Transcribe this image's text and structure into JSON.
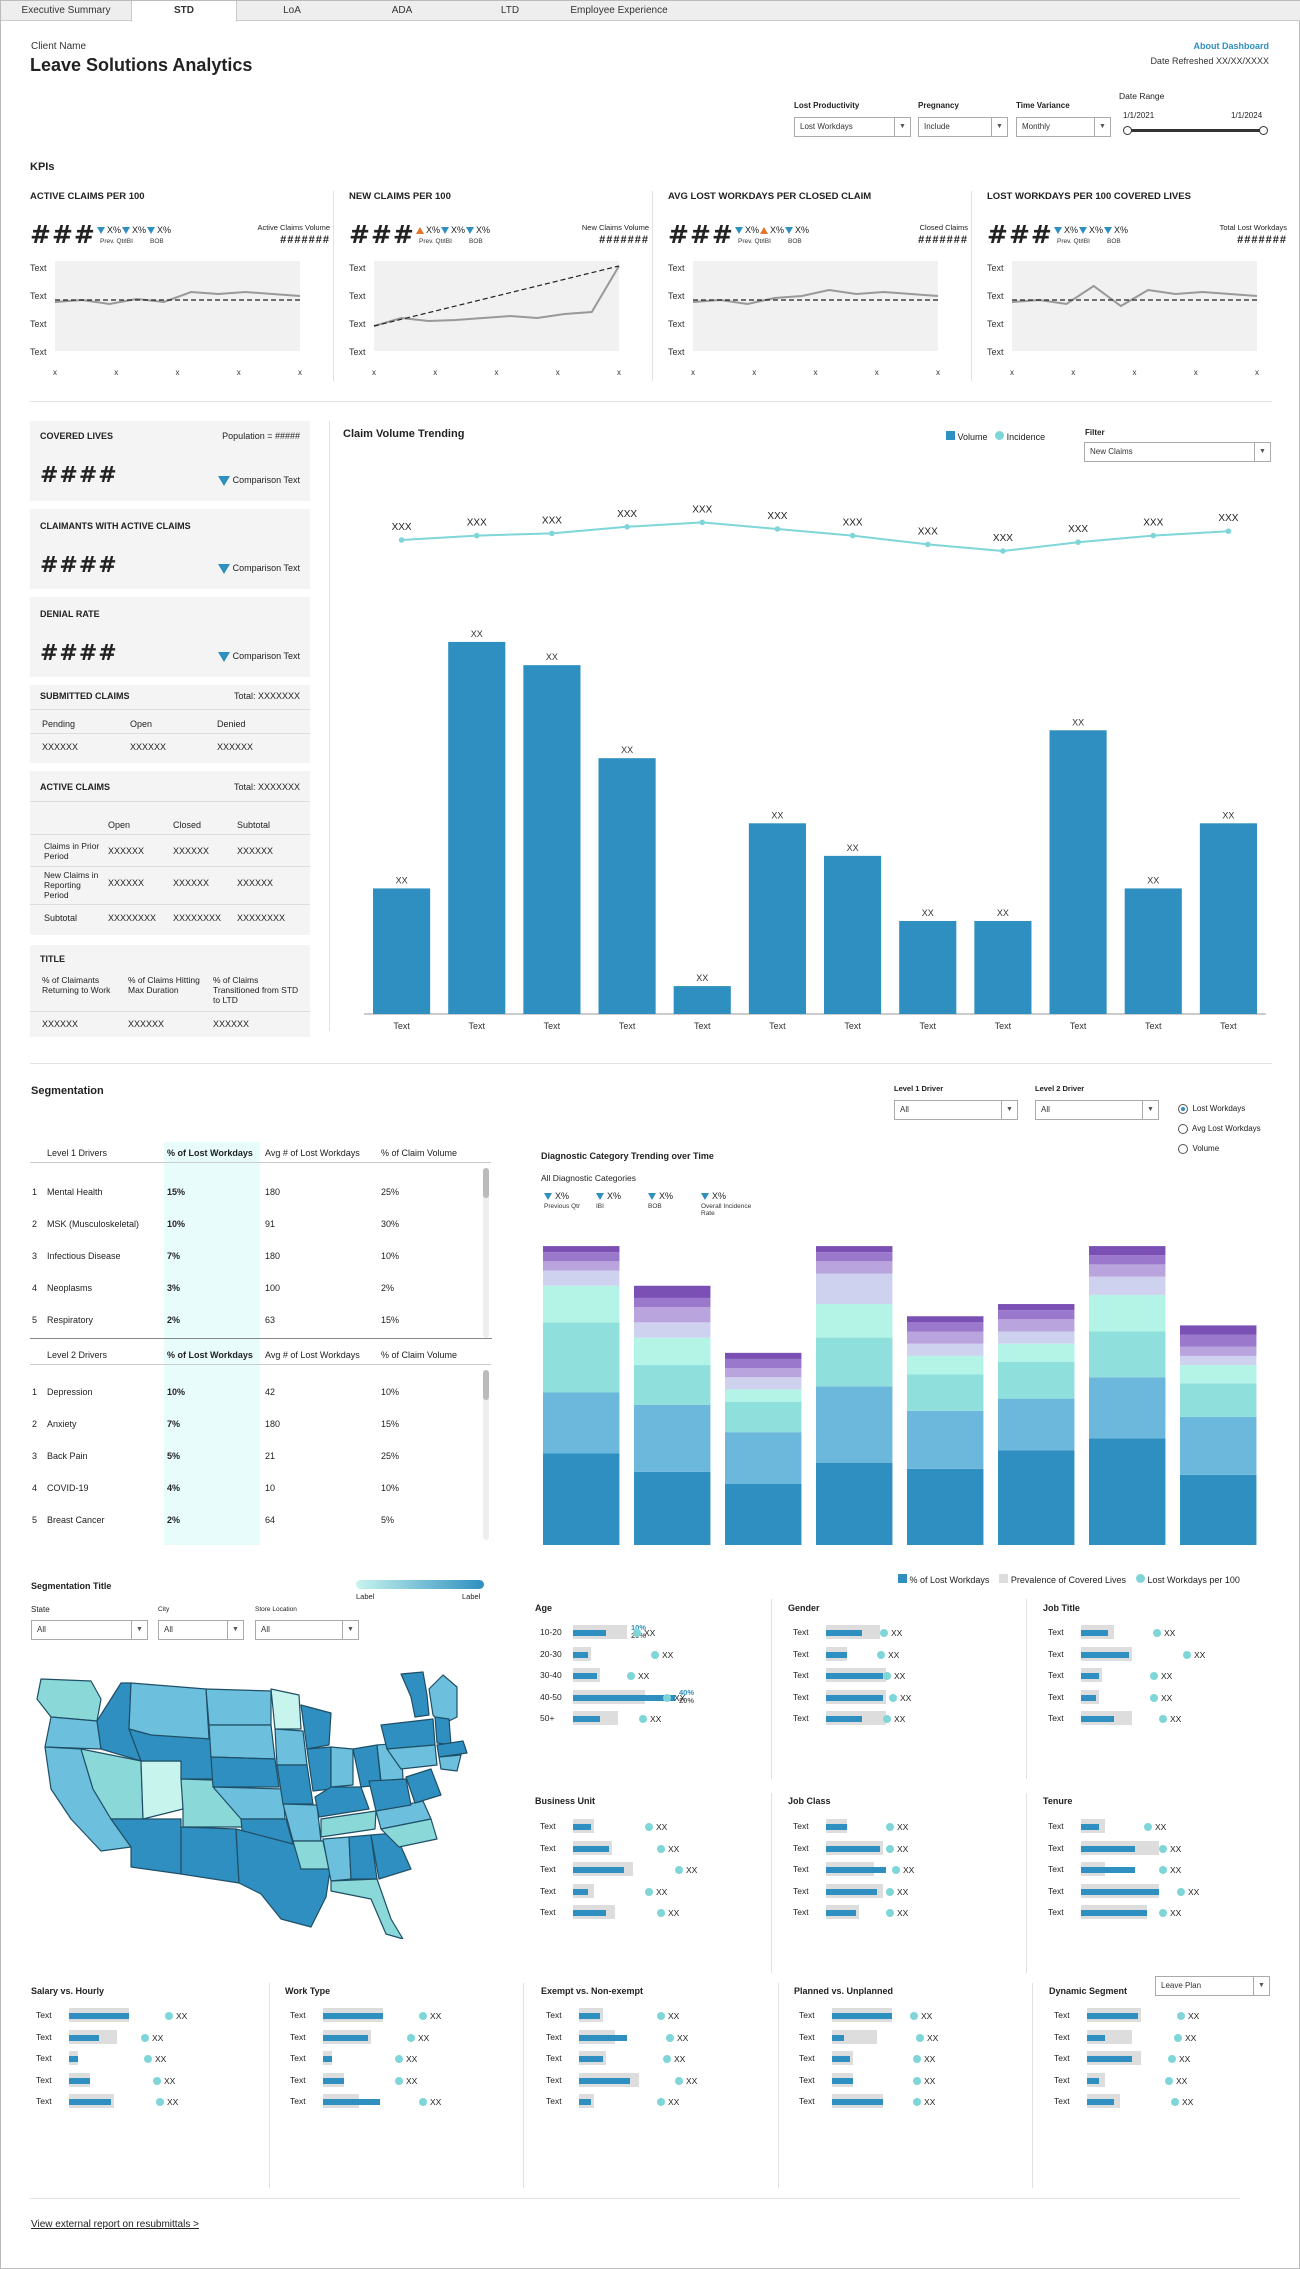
{
  "tabs": [
    "Executive Summary",
    "STD",
    "LoA",
    "ADA",
    "LTD",
    "Employee Experience"
  ],
  "active_tab": "STD",
  "header": {
    "client": "Client Name",
    "title": "Leave Solutions Analytics",
    "about": "About Dashboard",
    "refreshed": "Date Refreshed XX/XX/XXXX"
  },
  "filters": {
    "lost_label": "Lost Productivity",
    "lost_value": "Lost Workdays",
    "preg_label": "Pregnancy",
    "preg_value": "Include",
    "tv_label": "Time Variance",
    "tv_value": "Monthly",
    "dr_label": "Date Range",
    "dr_start": "1/1/2021",
    "dr_end": "1/1/2024"
  },
  "kpis_label": "KPIs",
  "kpis": [
    {
      "title": "ACTIVE CLAIMS PER 100",
      "value": "###",
      "deltas": [
        "X%",
        "X%",
        "X%"
      ],
      "sub": [
        "Prev. Qtr",
        "IBI",
        "BOB"
      ],
      "dirs": [
        "down",
        "down",
        "down"
      ],
      "vol_label": "Active Claims Volume",
      "vol_value": "#######",
      "yticks": [
        "Text",
        "Text",
        "Text",
        "Text"
      ],
      "xticks": [
        "x",
        "x",
        "x",
        "x",
        "x"
      ]
    },
    {
      "title": "NEW CLAIMS PER 100",
      "value": "###",
      "deltas": [
        "X%",
        "X%",
        "X%"
      ],
      "sub": [
        "Prev. Qtr",
        "IBI",
        "BOB"
      ],
      "dirs": [
        "up",
        "down",
        "down"
      ],
      "vol_label": "New Claims Volume",
      "vol_value": "#######",
      "yticks": [
        "Text",
        "Text",
        "Text",
        "Text"
      ],
      "xticks": [
        "x",
        "x",
        "x",
        "x",
        "x"
      ]
    },
    {
      "title": "AVG LOST WORKDAYS PER CLOSED CLAIM",
      "value": "###",
      "deltas": [
        "X%",
        "X%",
        "X%"
      ],
      "sub": [
        "Prev. Qtr",
        "IBI",
        "BOB"
      ],
      "dirs": [
        "down",
        "up",
        "down"
      ],
      "vol_label": "Closed Claims",
      "vol_value": "#######",
      "yticks": [
        "Text",
        "Text",
        "Text",
        "Text"
      ],
      "xticks": [
        "x",
        "x",
        "x",
        "x",
        "x"
      ]
    },
    {
      "title": "LOST WORKDAYS PER 100 COVERED LIVES",
      "value": "###",
      "deltas": [
        "X%",
        "X%",
        "X%"
      ],
      "sub": [
        "Prev. Qtr",
        "IBI",
        "BOB"
      ],
      "dirs": [
        "down",
        "down",
        "down"
      ],
      "vol_label": "Total Lost Workdays",
      "vol_value": "#######",
      "yticks": [
        "Text",
        "Text",
        "Text",
        "Text"
      ],
      "xticks": [
        "x",
        "x",
        "x",
        "x",
        "x"
      ]
    }
  ],
  "summary": {
    "covered": {
      "title": "COVERED LIVES",
      "pop": "Population = #####",
      "value": "####",
      "cmp": "Comparison Text"
    },
    "claimants": {
      "title": "CLAIMANTS WITH ACTIVE CLAIMS",
      "value": "####",
      "cmp": "Comparison Text"
    },
    "denial": {
      "title": "DENIAL RATE",
      "value": "####",
      "cmp": "Comparison Text"
    },
    "submitted": {
      "title": "SUBMITTED CLAIMS",
      "total": "Total: XXXXXXX",
      "cols": [
        "Pending",
        "Open",
        "Denied"
      ],
      "vals": [
        "XXXXXX",
        "XXXXXX",
        "XXXXXX"
      ]
    },
    "active": {
      "title": "ACTIVE CLAIMS",
      "total": "Total: XXXXXXX",
      "cols": [
        "Open",
        "Closed",
        "Subtotal"
      ],
      "rows": [
        {
          "label": "Claims in Prior Period",
          "vals": [
            "XXXXXX",
            "XXXXXX",
            "XXXXXX"
          ]
        },
        {
          "label": "New Claims in Reporting Period",
          "vals": [
            "XXXXXX",
            "XXXXXX",
            "XXXXXX"
          ]
        },
        {
          "label": "Subtotal",
          "vals": [
            "XXXXXXXX",
            "XXXXXXXX",
            "XXXXXXXX"
          ]
        }
      ]
    },
    "title_panel": {
      "title": "TITLE",
      "cols": [
        "% of Claimants Returning to Work",
        "% of Claims Hitting Max Duration",
        "% of Claims Transitioned from STD to LTD"
      ],
      "vals": [
        "XXXXXX",
        "XXXXXX",
        "XXXXXX"
      ]
    }
  },
  "claim_chart": {
    "title": "Claim Volume Trending",
    "legend": [
      "Volume",
      "Incidence"
    ],
    "filter_label": "Filter",
    "filter_value": "New Claims"
  },
  "chart_data": [
    {
      "type": "bar",
      "title": "Claim Volume Trending",
      "categories": [
        "Text",
        "Text",
        "Text",
        "Text",
        "Text",
        "Text",
        "Text",
        "Text",
        "Text",
        "Text",
        "Text",
        "Text"
      ],
      "series": [
        {
          "name": "Volume",
          "values": [
            27,
            80,
            75,
            55,
            6,
            41,
            34,
            20,
            20,
            61,
            27,
            41
          ],
          "labels": [
            "XX",
            "XX",
            "XX",
            "XX",
            "XX",
            "XX",
            "XX",
            "XX",
            "XX",
            "XX",
            "XX",
            "XX"
          ]
        },
        {
          "name": "Incidence",
          "values": [
            60,
            62,
            63,
            66,
            68,
            65,
            62,
            58,
            55,
            59,
            62,
            64
          ],
          "labels": [
            "XXX",
            "XXX",
            "XXX",
            "XXX",
            "XXX",
            "XXX",
            "XXX",
            "XXX",
            "XXX",
            "XXX",
            "XXX",
            "XXX"
          ]
        }
      ],
      "ylim": [
        0,
        100
      ]
    },
    {
      "type": "bar",
      "title": "Diagnostic Category Trending over Time",
      "stacked": true,
      "series": [
        {
          "values": [
            30,
            24,
            20,
            27,
            25,
            31,
            35,
            23
          ]
        },
        {
          "values": [
            20,
            22,
            17,
            25,
            19,
            17,
            20,
            19
          ]
        },
        {
          "values": [
            23,
            13,
            10,
            16,
            12,
            12,
            15,
            11
          ]
        },
        {
          "values": [
            12,
            9,
            4,
            11,
            6,
            6,
            12,
            6
          ]
        },
        {
          "values": [
            5,
            5,
            4,
            10,
            4,
            4,
            6,
            3
          ]
        },
        {
          "values": [
            3,
            5,
            3,
            4,
            4,
            4,
            4,
            3
          ]
        },
        {
          "values": [
            3,
            3,
            3,
            3,
            3,
            3,
            3,
            4
          ]
        },
        {
          "values": [
            2,
            4,
            2,
            2,
            2,
            2,
            3,
            3
          ]
        }
      ]
    }
  ],
  "segmentation": {
    "title": "Segmentation",
    "l1_label": "Level 1 Driver",
    "l1_value": "All",
    "l2_label": "Level 2 Driver",
    "l2_value": "All",
    "radios": [
      "Lost Workdays",
      "Avg Lost Workdays",
      "Volume"
    ],
    "level1": {
      "cols": [
        "Level 1 Drivers",
        "% of Lost Workdays",
        "Avg # of Lost Workdays",
        "% of Claim Volume"
      ],
      "rows": [
        [
          "1",
          "Mental Health",
          "15%",
          "180",
          "25%"
        ],
        [
          "2",
          "MSK (Musculoskeletal)",
          "10%",
          "91",
          "30%"
        ],
        [
          "3",
          "Infectious Disease",
          "7%",
          "180",
          "10%"
        ],
        [
          "4",
          "Neoplasms",
          "3%",
          "100",
          "2%"
        ],
        [
          "5",
          "Respiratory",
          "2%",
          "63",
          "15%"
        ]
      ]
    },
    "level2": {
      "cols": [
        "Level 2 Drivers",
        "% of Lost Workdays",
        "Avg # of Lost Workdays",
        "% of Claim Volume"
      ],
      "rows": [
        [
          "1",
          "Depression",
          "10%",
          "42",
          "10%"
        ],
        [
          "2",
          "Anxiety",
          "7%",
          "180",
          "15%"
        ],
        [
          "3",
          "Back Pain",
          "5%",
          "21",
          "25%"
        ],
        [
          "4",
          "COVID-19",
          "4%",
          "10",
          "10%"
        ],
        [
          "5",
          "Breast Cancer",
          "2%",
          "64",
          "5%"
        ]
      ]
    },
    "diag": {
      "title": "Diagnostic Category Trending over Time",
      "sub": "All Diagnostic Categories",
      "deltas": [
        "X%",
        "X%",
        "X%",
        "X%"
      ],
      "labels": [
        "Previous Qtr",
        "IBI",
        "BOB",
        "Overall Incidence Rate"
      ]
    }
  },
  "map": {
    "title": "Segmentation Title",
    "scale_low": "Label",
    "scale_high": "Label",
    "state_label": "State",
    "state_value": "All",
    "city_label": "City",
    "city_value": "All",
    "store_label": "Store Location",
    "store_value": "All"
  },
  "demo_legend": [
    "% of Lost Workdays",
    "Prevalence of Covered Lives",
    "Lost Workdays per 100"
  ],
  "demo": [
    {
      "title": "Age",
      "rows": [
        {
          "l": "10-20",
          "b": 0.55,
          "g": 0.9,
          "d": 1.0,
          "v": "XX",
          "n1": "10%",
          "n2": "20%"
        },
        {
          "l": "20-30",
          "b": 0.25,
          "g": 0.3,
          "d": 1.3,
          "v": "XX"
        },
        {
          "l": "30-40",
          "b": 0.4,
          "g": 0.45,
          "d": 0.9,
          "v": "XX"
        },
        {
          "l": "40-50",
          "b": 1.7,
          "g": 1.2,
          "d": 1.5,
          "v": "XX",
          "n1": "40%",
          "n2": "20%"
        },
        {
          "l": "50+",
          "b": 0.45,
          "g": 0.75,
          "d": 1.1,
          "v": "XX"
        }
      ]
    },
    {
      "title": "Gender",
      "rows": [
        {
          "l": "Text",
          "b": 0.6,
          "g": 0.9,
          "d": 0.9,
          "v": "XX"
        },
        {
          "l": "Text",
          "b": 0.35,
          "g": 0.35,
          "d": 0.85,
          "v": "XX"
        },
        {
          "l": "Text",
          "b": 0.95,
          "g": 1.0,
          "d": 0.95,
          "v": "XX"
        },
        {
          "l": "Text",
          "b": 0.95,
          "g": 1.0,
          "d": 1.05,
          "v": "XX"
        },
        {
          "l": "Text",
          "b": 0.6,
          "g": 1.0,
          "d": 0.95,
          "v": "XX"
        }
      ]
    },
    {
      "title": "Job Title",
      "rows": [
        {
          "l": "Text",
          "b": 0.45,
          "g": 0.55,
          "d": 1.2,
          "v": "XX"
        },
        {
          "l": "Text",
          "b": 0.8,
          "g": 0.85,
          "d": 1.7,
          "v": "XX"
        },
        {
          "l": "Text",
          "b": 0.3,
          "g": 0.35,
          "d": 1.15,
          "v": "XX"
        },
        {
          "l": "Text",
          "b": 0.25,
          "g": 0.3,
          "d": 1.15,
          "v": "XX"
        },
        {
          "l": "Text",
          "b": 0.55,
          "g": 0.85,
          "d": 1.3,
          "v": "XX"
        }
      ]
    },
    {
      "title": "Business Unit",
      "rows": [
        {
          "l": "Text",
          "b": 0.3,
          "g": 0.35,
          "d": 1.2,
          "v": "XX"
        },
        {
          "l": "Text",
          "b": 0.6,
          "g": 0.65,
          "d": 1.4,
          "v": "XX"
        },
        {
          "l": "Text",
          "b": 0.85,
          "g": 1.0,
          "d": 1.7,
          "v": "XX"
        },
        {
          "l": "Text",
          "b": 0.25,
          "g": 0.35,
          "d": 1.2,
          "v": "XX"
        },
        {
          "l": "Text",
          "b": 0.55,
          "g": 0.7,
          "d": 1.4,
          "v": "XX"
        }
      ]
    },
    {
      "title": "Job Class",
      "rows": [
        {
          "l": "Text",
          "b": 0.35,
          "g": 0.35,
          "d": 1.0,
          "v": "XX"
        },
        {
          "l": "Text",
          "b": 0.9,
          "g": 0.95,
          "d": 1.0,
          "v": "XX"
        },
        {
          "l": "Text",
          "b": 1.0,
          "g": 0.8,
          "d": 1.1,
          "v": "XX"
        },
        {
          "l": "Text",
          "b": 0.85,
          "g": 0.95,
          "d": 1.0,
          "v": "XX"
        },
        {
          "l": "Text",
          "b": 0.5,
          "g": 0.55,
          "d": 1.0,
          "v": "XX"
        }
      ]
    },
    {
      "title": "Tenure",
      "rows": [
        {
          "l": "Text",
          "b": 0.3,
          "g": 0.4,
          "d": 1.05,
          "v": "XX"
        },
        {
          "l": "Text",
          "b": 0.9,
          "g": 1.3,
          "d": 1.3,
          "v": "XX"
        },
        {
          "l": "Text",
          "b": 0.9,
          "g": 0.4,
          "d": 1.3,
          "v": "XX"
        },
        {
          "l": "Text",
          "b": 1.3,
          "g": 1.3,
          "d": 1.6,
          "v": "XX"
        },
        {
          "l": "Text",
          "b": 1.1,
          "g": 1.1,
          "d": 1.3,
          "v": "XX"
        }
      ]
    },
    {
      "title": "Salary vs. Hourly",
      "rows": [
        {
          "l": "Text",
          "b": 1.0,
          "g": 1.0,
          "d": 1.6,
          "v": "XX"
        },
        {
          "l": "Text",
          "b": 0.5,
          "g": 0.8,
          "d": 1.2,
          "v": "XX"
        },
        {
          "l": "Text",
          "b": 0.15,
          "g": 0.15,
          "d": 1.25,
          "v": "XX"
        },
        {
          "l": "Text",
          "b": 0.35,
          "g": 0.35,
          "d": 1.4,
          "v": "XX"
        },
        {
          "l": "Text",
          "b": 0.7,
          "g": 0.75,
          "d": 1.45,
          "v": "XX"
        }
      ]
    },
    {
      "title": "Work Type",
      "rows": [
        {
          "l": "Text",
          "b": 1.0,
          "g": 1.0,
          "d": 1.6,
          "v": "XX"
        },
        {
          "l": "Text",
          "b": 0.75,
          "g": 0.8,
          "d": 1.4,
          "v": "XX"
        },
        {
          "l": "Text",
          "b": 0.15,
          "g": 0.15,
          "d": 1.2,
          "v": "XX"
        },
        {
          "l": "Text",
          "b": 0.35,
          "g": 0.35,
          "d": 1.2,
          "v": "XX"
        },
        {
          "l": "Text",
          "b": 0.95,
          "g": 0.6,
          "d": 1.6,
          "v": "XX"
        }
      ]
    },
    {
      "title": "Exempt vs. Non-exempt",
      "rows": [
        {
          "l": "Text",
          "b": 0.35,
          "g": 0.4,
          "d": 1.3,
          "v": "XX"
        },
        {
          "l": "Text",
          "b": 0.8,
          "g": 0.6,
          "d": 1.45,
          "v": "XX"
        },
        {
          "l": "Text",
          "b": 0.4,
          "g": 0.45,
          "d": 1.4,
          "v": "XX"
        },
        {
          "l": "Text",
          "b": 0.85,
          "g": 1.0,
          "d": 1.6,
          "v": "XX"
        },
        {
          "l": "Text",
          "b": 0.2,
          "g": 0.25,
          "d": 1.3,
          "v": "XX"
        }
      ]
    },
    {
      "title": "Planned vs. Unplanned",
      "rows": [
        {
          "l": "Text",
          "b": 1.0,
          "g": 1.0,
          "d": 1.3,
          "v": "XX"
        },
        {
          "l": "Text",
          "b": 0.2,
          "g": 0.75,
          "d": 1.4,
          "v": "XX"
        },
        {
          "l": "Text",
          "b": 0.3,
          "g": 0.35,
          "d": 1.35,
          "v": "XX"
        },
        {
          "l": "Text",
          "b": 0.35,
          "g": 0.35,
          "d": 1.35,
          "v": "XX"
        },
        {
          "l": "Text",
          "b": 0.85,
          "g": 0.85,
          "d": 1.35,
          "v": "XX"
        }
      ]
    },
    {
      "title": "Dynamic Segment",
      "rows": [
        {
          "l": "Text",
          "b": 0.85,
          "g": 0.9,
          "d": 1.5,
          "v": "XX"
        },
        {
          "l": "Text",
          "b": 0.3,
          "g": 0.75,
          "d": 1.45,
          "v": "XX"
        },
        {
          "l": "Text",
          "b": 0.75,
          "g": 0.9,
          "d": 1.35,
          "v": "XX"
        },
        {
          "l": "Text",
          "b": 0.2,
          "g": 0.3,
          "d": 1.3,
          "v": "XX"
        },
        {
          "l": "Text",
          "b": 0.45,
          "g": 0.55,
          "d": 1.4,
          "v": "XX"
        }
      ]
    }
  ],
  "dynamic_dd": "Leave Plan",
  "footer_link": "View external report on resubmittals >",
  "colors": {
    "blue": "#2e8fc0",
    "teal": "#7fd6d8",
    "orange": "#e8742a"
  }
}
